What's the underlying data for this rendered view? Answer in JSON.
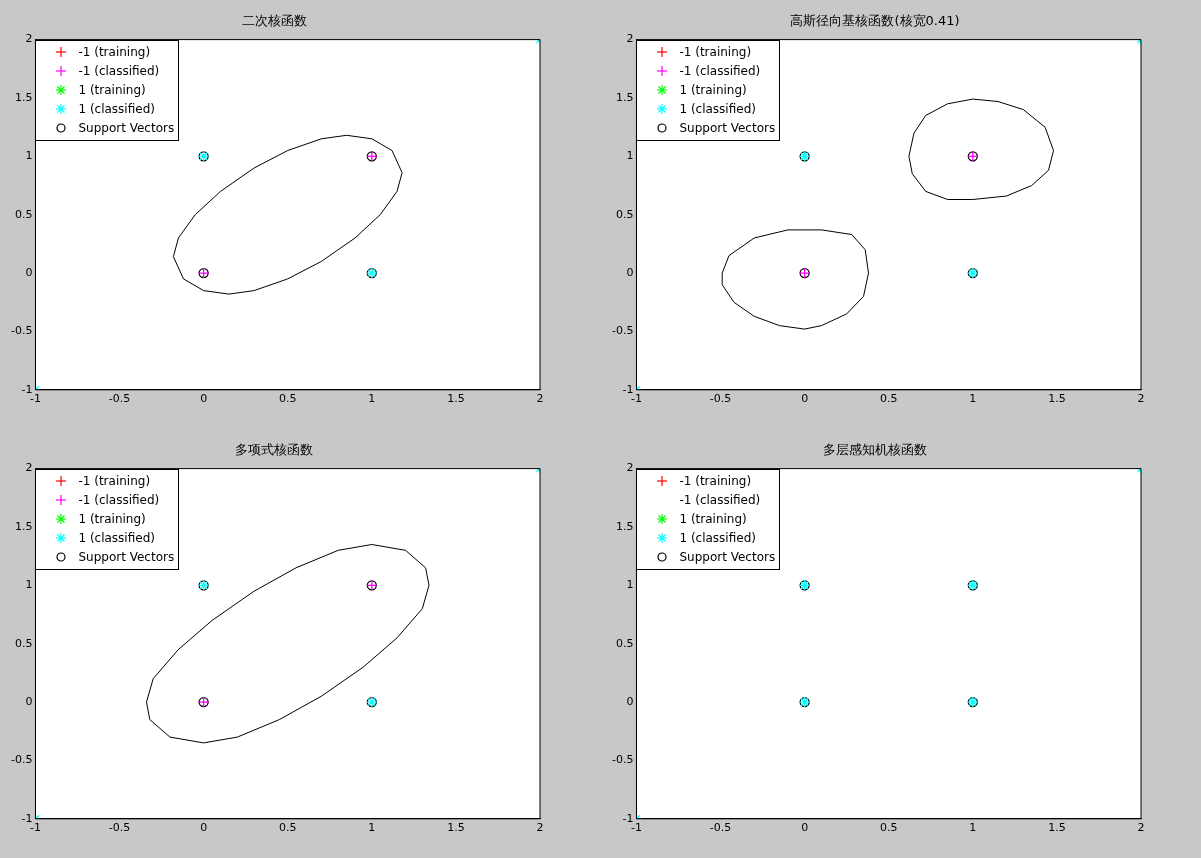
{
  "chart_data": [
    {
      "type": "scatter",
      "title": "二次核函数",
      "xlim": [
        -1,
        2
      ],
      "ylim": [
        -1,
        2
      ],
      "xticks": [
        -1,
        -0.5,
        0,
        0.5,
        1,
        1.5,
        2
      ],
      "yticks": [
        -1,
        -0.5,
        0,
        0.5,
        1,
        1.5,
        2
      ],
      "grid": false,
      "legend": "top left",
      "series": [
        {
          "name": "-1 (training)",
          "color": "#ff0000",
          "marker": "cross"
        },
        {
          "name": "-1 (classified)",
          "color": "#ff00ff",
          "marker": "cross",
          "x": [
            0,
            1
          ],
          "values": [
            0,
            1
          ]
        },
        {
          "name": "1 (training)",
          "color": "#00ff00"
        },
        {
          "name": "1 (classified)",
          "color": "#00ffff",
          "x": [
            0,
            1,
            -1,
            2
          ],
          "values": [
            1,
            0,
            -1,
            2
          ]
        },
        {
          "name": "Support Vectors",
          "color": "#000000",
          "marker": "circle",
          "x": [
            0,
            1,
            0,
            1
          ],
          "values": [
            0,
            1,
            1,
            0
          ]
        }
      ]
    },
    {
      "type": "scatter",
      "title": "高斯径向基核函数(核宽0.41)",
      "xlim": [
        -1,
        2
      ],
      "ylim": [
        -1,
        2
      ],
      "xticks": [
        -1,
        -0.5,
        0,
        0.5,
        1,
        1.5,
        2
      ],
      "yticks": [
        -1,
        -0.5,
        0,
        0.5,
        1,
        1.5,
        2
      ],
      "grid": false,
      "legend": "top left",
      "series": [
        {
          "name": "-1 (training)",
          "color": "#ff0000",
          "marker": "cross"
        },
        {
          "name": "-1 (classified)",
          "color": "#ff00ff",
          "marker": "cross",
          "x": [
            0,
            1
          ],
          "values": [
            0,
            1
          ]
        },
        {
          "name": "1 (training)",
          "color": "#00ff00"
        },
        {
          "name": "1 (classified)",
          "color": "#00ffff",
          "x": [
            0,
            1,
            -1,
            2
          ],
          "values": [
            1,
            0,
            -1,
            2
          ]
        },
        {
          "name": "Support Vectors",
          "color": "#000000",
          "marker": "circle",
          "x": [
            0,
            1,
            0,
            1
          ],
          "values": [
            0,
            1,
            1,
            0
          ]
        }
      ]
    },
    {
      "type": "scatter",
      "title": "多项式核函数",
      "xlim": [
        -1,
        2
      ],
      "ylim": [
        -1,
        2
      ],
      "xticks": [
        -1,
        -0.5,
        0,
        0.5,
        1,
        1.5,
        2
      ],
      "yticks": [
        -1,
        -0.5,
        0,
        0.5,
        1,
        1.5,
        2
      ],
      "grid": false,
      "legend": "top left",
      "series": [
        {
          "name": "-1 (training)",
          "color": "#ff0000",
          "marker": "cross"
        },
        {
          "name": "-1 (classified)",
          "color": "#ff00ff",
          "marker": "cross",
          "x": [
            0,
            1
          ],
          "values": [
            0,
            1
          ]
        },
        {
          "name": "1 (training)",
          "color": "#00ff00"
        },
        {
          "name": "1 (classified)",
          "color": "#00ffff",
          "x": [
            0,
            1,
            -1,
            2
          ],
          "values": [
            1,
            0,
            -1,
            2
          ]
        },
        {
          "name": "Support Vectors",
          "color": "#000000",
          "marker": "circle",
          "x": [
            0,
            1,
            0,
            1
          ],
          "values": [
            0,
            1,
            1,
            0
          ]
        }
      ]
    },
    {
      "type": "scatter",
      "title": "多层感知机核函数",
      "xlim": [
        -1,
        2
      ],
      "ylim": [
        -1,
        2
      ],
      "xticks": [
        -1,
        -0.5,
        0,
        0.5,
        1,
        1.5,
        2
      ],
      "yticks": [
        -1,
        -0.5,
        0,
        0.5,
        1,
        1.5,
        2
      ],
      "grid": false,
      "legend": "top left",
      "series": [
        {
          "name": "-1 (training)",
          "color": "#ff0000",
          "marker": "cross"
        },
        {
          "name": "-1 (classified)"
        },
        {
          "name": "1 (training)",
          "color": "#00ff00"
        },
        {
          "name": "1 (classified)",
          "color": "#00ffff",
          "x": [
            0,
            1,
            0,
            1,
            -1,
            2
          ],
          "values": [
            0,
            1,
            1,
            0,
            -1,
            2
          ]
        },
        {
          "name": "Support Vectors",
          "color": "#000000",
          "marker": "circle",
          "x": [
            0,
            1,
            0,
            1
          ],
          "values": [
            0,
            1,
            1,
            0
          ]
        }
      ]
    }
  ]
}
